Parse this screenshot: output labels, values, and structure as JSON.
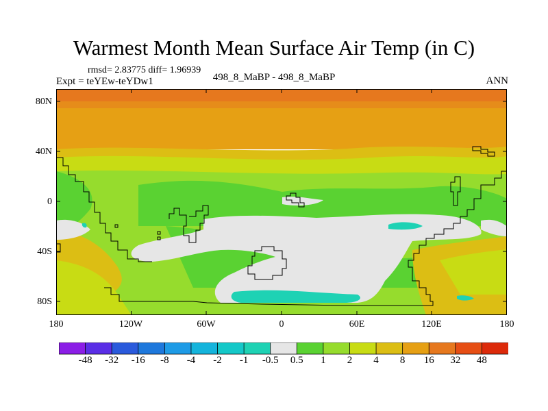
{
  "title": "Warmest Month Mean Surface Air Temp (in C)",
  "stats": "rmsd= 2.83775  diff= 1.96939",
  "expt": "Expt = teYEw-teYDw1",
  "period": "498_8_MaBP - 498_8_MaBP",
  "season": "ANN",
  "y_ticks": [
    "80N",
    "40N",
    "0",
    "40S",
    "80S"
  ],
  "x_ticks": [
    "180",
    "120W",
    "60W",
    "0",
    "60E",
    "120E",
    "180"
  ],
  "colorbar": {
    "labels": [
      "-48",
      "-32",
      "-16",
      "-8",
      "-4",
      "-2",
      "-1",
      "-0.5",
      "0.5",
      "1",
      "2",
      "4",
      "8",
      "16",
      "32",
      "48"
    ],
    "colors": [
      "#8b1ee6",
      "#5a2ee6",
      "#2a5adc",
      "#1e78dc",
      "#1e9be6",
      "#14b4dc",
      "#14c8c8",
      "#1ed2b4",
      "#e6e6e6",
      "#5ad232",
      "#96dc2d",
      "#c8dc14",
      "#dcbe14",
      "#e6a014",
      "#e6781e",
      "#e64e14",
      "#dc2a0a"
    ]
  },
  "map_colors": {
    "dark_orange": "#e6781e",
    "orange": "#e6a014",
    "gold": "#dcbe14",
    "yellow_green": "#c8dc14",
    "light_green": "#96dc2d",
    "green": "#5ad232",
    "neutral": "#e6e6e6",
    "cyan": "#1ed2b4"
  }
}
